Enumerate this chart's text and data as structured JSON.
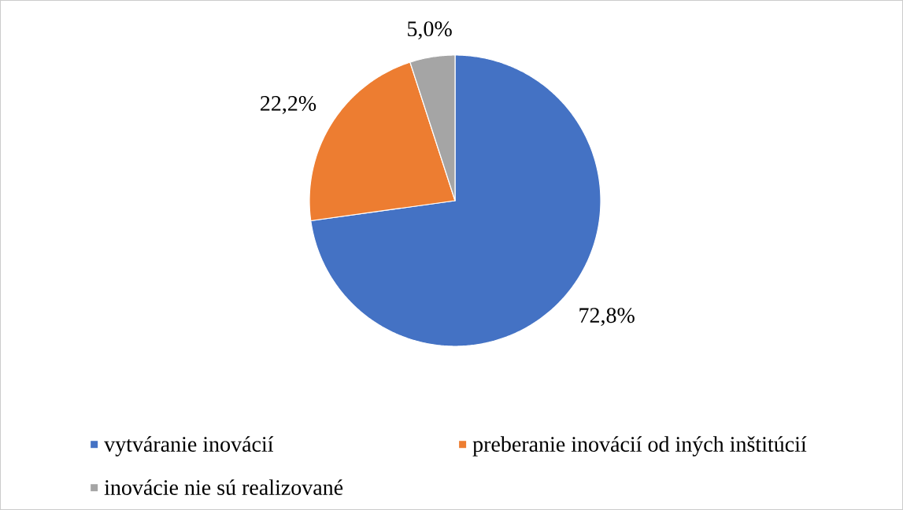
{
  "chart_data": {
    "type": "pie",
    "categories": [
      "vytváranie inovácií",
      "preberanie inovácií od iných inštitúcií",
      "inovácie nie sú realizované"
    ],
    "values": [
      72.8,
      22.2,
      5.0
    ],
    "colors": [
      "#4472c4",
      "#ed7d31",
      "#a5a5a5"
    ],
    "value_labels": [
      "72,8%",
      "22,2%",
      "5,0%"
    ],
    "legend": "bottom"
  }
}
